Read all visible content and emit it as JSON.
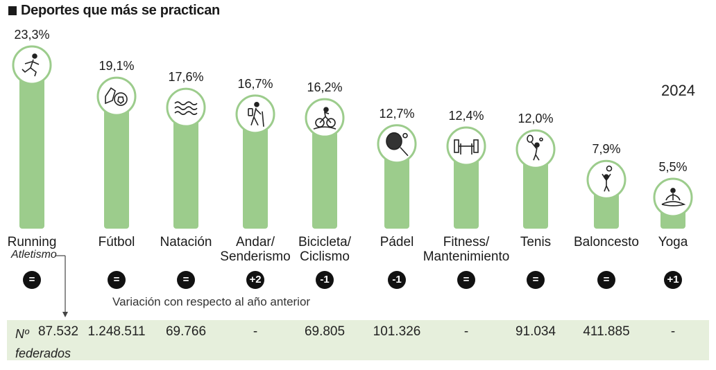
{
  "title": "Deportes que más se practican",
  "year": "2024",
  "variation_note": "Variación con respecto al año anterior",
  "federados_label": "Nº federados",
  "federados_label_parts": [
    "Nº",
    "federados"
  ],
  "running_sublabel": "Atletismo",
  "colors": {
    "bar": "#9ccc8c",
    "circle_border": "#9ccc8c",
    "band": "#e6efdc",
    "badge": "#111111"
  },
  "chart_data": {
    "type": "bar",
    "title": "Deportes que más se practican",
    "unit": "%",
    "ylim": [
      0,
      23.3
    ],
    "categories": [
      "Running",
      "Fútbol",
      "Natación",
      "Andar/ Senderismo",
      "Bicicleta/ Ciclismo",
      "Pádel",
      "Fitness/ Mantenimiento",
      "Tenis",
      "Baloncesto",
      "Yoga"
    ],
    "values": [
      23.3,
      19.1,
      17.6,
      16.7,
      16.2,
      12.7,
      12.4,
      12.0,
      7.9,
      5.5
    ],
    "value_labels": [
      "23,3%",
      "19,1%",
      "17,6%",
      "16,7%",
      "16,2%",
      "12,7%",
      "12,4%",
      "12,0%",
      "7,9%",
      "5,5%"
    ],
    "variation": [
      "=",
      "=",
      "=",
      "+2",
      "-1",
      "-1",
      "=",
      "=",
      "=",
      "+1"
    ],
    "federados": [
      "87.532",
      "1.248.511",
      "69.766",
      "-",
      "69.805",
      "101.326",
      "-",
      "91.034",
      "411.885",
      "-"
    ]
  },
  "sports": [
    {
      "label_lines": [
        "Running"
      ],
      "icon": "runner-icon"
    },
    {
      "label_lines": [
        "Fútbol"
      ],
      "icon": "soccer-icon"
    },
    {
      "label_lines": [
        "Natación"
      ],
      "icon": "swimming-icon"
    },
    {
      "label_lines": [
        "Andar/",
        "Senderismo"
      ],
      "icon": "hiker-icon"
    },
    {
      "label_lines": [
        "Bicicleta/",
        "Ciclismo"
      ],
      "icon": "cyclist-icon"
    },
    {
      "label_lines": [
        "Pádel"
      ],
      "icon": "padel-racket-icon"
    },
    {
      "label_lines": [
        "Fitness/",
        "Mantenimiento"
      ],
      "icon": "dumbbell-icon"
    },
    {
      "label_lines": [
        "Tenis"
      ],
      "icon": "tennis-player-icon"
    },
    {
      "label_lines": [
        "Baloncesto"
      ],
      "icon": "basketball-player-icon"
    },
    {
      "label_lines": [
        "Yoga"
      ],
      "icon": "yoga-icon"
    }
  ]
}
